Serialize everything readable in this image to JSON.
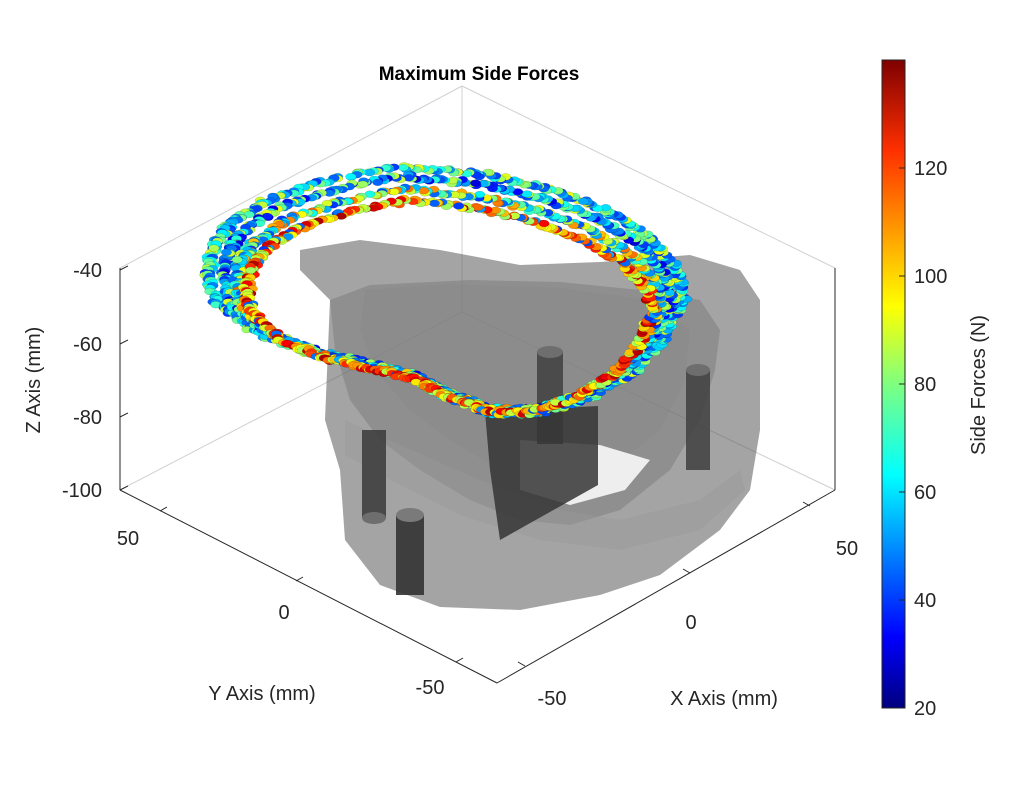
{
  "chart_data": {
    "type": "scatter",
    "subtype": "3d-scatter",
    "title": "Maximum Side Forces",
    "xlabel": "X Axis (mm)",
    "ylabel": "Y Axis (mm)",
    "zlabel": "Z Axis (mm)",
    "colorbar_label": "Side Forces (N)",
    "x_ticks": [
      "-50",
      "0",
      "50"
    ],
    "y_ticks": [
      "50",
      "0",
      "-50"
    ],
    "z_ticks": [
      "-40",
      "-60",
      "-80",
      "-100"
    ],
    "colorbar_ticks": [
      "20",
      "40",
      "60",
      "80",
      "100",
      "120"
    ],
    "xlim": [
      -60,
      60
    ],
    "ylim": [
      -60,
      60
    ],
    "zlim": [
      -100,
      -40
    ],
    "clim": [
      20,
      140
    ],
    "colormap": "jet",
    "box": true,
    "grid": false,
    "series": [
      {
        "rim_path_xy": [
          [
            -50,
            35
          ],
          [
            -42,
            45
          ],
          [
            -32,
            52
          ],
          [
            -18,
            55
          ],
          [
            -4,
            53
          ],
          [
            8,
            48
          ],
          [
            20,
            44
          ],
          [
            32,
            44
          ],
          [
            44,
            42
          ],
          [
            52,
            34
          ],
          [
            55,
            20
          ],
          [
            54,
            4
          ],
          [
            48,
            -12
          ],
          [
            38,
            -28
          ],
          [
            24,
            -40
          ],
          [
            8,
            -48
          ],
          [
            -8,
            -50
          ],
          [
            -22,
            -46
          ],
          [
            -34,
            -38
          ],
          [
            -44,
            -24
          ],
          [
            -52,
            -6
          ],
          [
            -56,
            12
          ],
          [
            -54,
            26
          ]
        ],
        "rim_z": -40,
        "force_range": [
          30,
          135
        ]
      }
    ],
    "solid_color": "#606060"
  }
}
